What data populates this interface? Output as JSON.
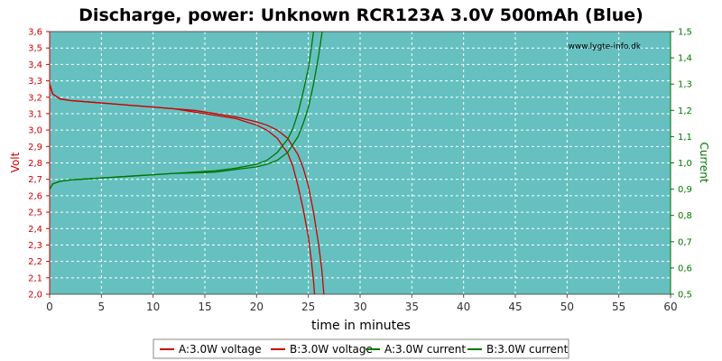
{
  "chart_data": {
    "type": "line",
    "title": "Discharge, power: Unknown RCR123A 3.0V 500mAh (Blue)",
    "xlabel": "time in minutes",
    "ylabel_left": "Volt",
    "ylabel_right": "Current",
    "watermark": "www.lygte-info.dk",
    "xlim": [
      0,
      60
    ],
    "ylim_left": [
      2.0,
      3.6
    ],
    "ylim_right": [
      0.5,
      1.5
    ],
    "x_ticks": [
      "0",
      "5",
      "10",
      "15",
      "20",
      "25",
      "30",
      "35",
      "40",
      "45",
      "50",
      "55",
      "60"
    ],
    "y_left_ticks": [
      "2,0",
      "2,1",
      "2,2",
      "2,3",
      "2,4",
      "2,5",
      "2,6",
      "2,7",
      "2,8",
      "2,9",
      "3,0",
      "3,1",
      "3,2",
      "3,3",
      "3,4",
      "3,5",
      "3,6"
    ],
    "y_right_ticks": [
      "0,5",
      "0,6",
      "0,7",
      "0,8",
      "0,9",
      "1,0",
      "1,1",
      "1,2",
      "1,3",
      "1,4",
      "1,5"
    ],
    "grid": true,
    "legend_position": "bottom",
    "colors": {
      "plot_bg": "#66c0c0",
      "grid": "#ffffff",
      "voltage": "#cc0000",
      "current": "#007700",
      "left_axis": "#cc0000",
      "right_axis": "#007700"
    },
    "series": [
      {
        "name": "A:3.0W voltage",
        "axis": "left",
        "color": "#cc0000",
        "x": [
          0,
          0.3,
          1,
          2,
          4,
          6,
          8,
          10,
          12,
          14,
          16,
          18,
          20,
          21,
          22,
          23,
          23.5,
          24,
          24.5,
          25,
          25.3,
          25.5,
          25.6
        ],
        "y": [
          3.28,
          3.22,
          3.19,
          3.18,
          3.17,
          3.16,
          3.15,
          3.14,
          3.13,
          3.11,
          3.09,
          3.07,
          3.03,
          3.0,
          2.95,
          2.86,
          2.78,
          2.66,
          2.52,
          2.35,
          2.2,
          2.08,
          2.0
        ]
      },
      {
        "name": "B:3.0W voltage",
        "axis": "left",
        "color": "#cc0000",
        "x": [
          0,
          0.3,
          1,
          2,
          4,
          6,
          8,
          10,
          12,
          14,
          16,
          18,
          20,
          21,
          22,
          23,
          24,
          24.5,
          25,
          25.5,
          26,
          26.3,
          26.5
        ],
        "y": [
          3.28,
          3.22,
          3.19,
          3.18,
          3.17,
          3.16,
          3.15,
          3.14,
          3.13,
          3.12,
          3.1,
          3.08,
          3.05,
          3.03,
          3.0,
          2.95,
          2.85,
          2.77,
          2.66,
          2.5,
          2.3,
          2.15,
          2.0
        ]
      },
      {
        "name": "A:3.0W current",
        "axis": "right",
        "color": "#007700",
        "x": [
          0,
          0.3,
          1,
          2,
          4,
          6,
          8,
          10,
          12,
          14,
          16,
          18,
          20,
          21,
          22,
          23,
          23.5,
          24,
          24.5,
          25,
          25.3,
          25.5,
          25.6
        ],
        "y": [
          0.9,
          0.92,
          0.93,
          0.935,
          0.94,
          0.945,
          0.95,
          0.955,
          0.96,
          0.965,
          0.97,
          0.98,
          0.995,
          1.01,
          1.04,
          1.09,
          1.13,
          1.19,
          1.27,
          1.36,
          1.44,
          1.5,
          1.53
        ]
      },
      {
        "name": "B:3.0W current",
        "axis": "right",
        "color": "#007700",
        "x": [
          0,
          0.3,
          1,
          2,
          4,
          6,
          8,
          10,
          12,
          14,
          16,
          18,
          20,
          21,
          22,
          23,
          24,
          24.5,
          25,
          25.5,
          26,
          26.3,
          26.5
        ],
        "y": [
          0.9,
          0.92,
          0.93,
          0.935,
          0.94,
          0.945,
          0.95,
          0.955,
          0.96,
          0.962,
          0.965,
          0.975,
          0.985,
          0.995,
          1.01,
          1.04,
          1.1,
          1.15,
          1.21,
          1.3,
          1.41,
          1.49,
          1.55
        ]
      }
    ]
  }
}
